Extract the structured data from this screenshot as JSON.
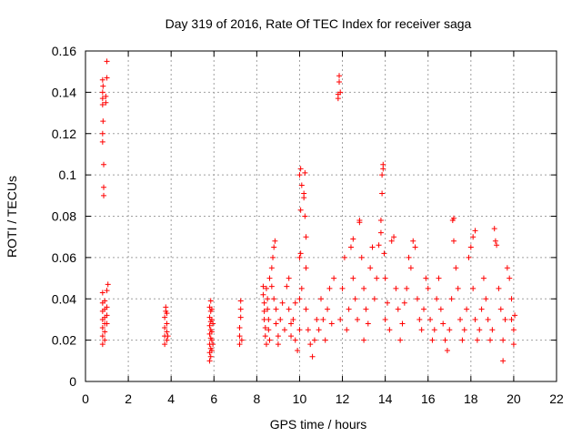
{
  "chart_data": {
    "type": "scatter",
    "title": "Day 319 of 2016, Rate Of TEC Index for receiver saga",
    "xlabel": "GPS time / hours",
    "ylabel": "ROTI / TECUs",
    "xlim": [
      0,
      22
    ],
    "ylim": [
      0,
      0.16
    ],
    "xticks": [
      0,
      2,
      4,
      6,
      8,
      10,
      12,
      14,
      16,
      18,
      20,
      22
    ],
    "yticks": [
      0,
      0.02,
      0.04,
      0.06,
      0.08,
      0.1,
      0.12,
      0.14,
      0.16
    ],
    "xtick_labels": [
      "0",
      "2",
      "4",
      "6",
      "8",
      "10",
      "12",
      "14",
      "16",
      "18",
      "20",
      "22"
    ],
    "ytick_labels": [
      "0",
      "0.02",
      "0.04",
      "0.06",
      "0.08",
      "0.1",
      "0.12",
      "0.14",
      "0.16"
    ],
    "grid": true,
    "marker": "plus",
    "color": "#ff0000",
    "series": [
      {
        "name": "ROTI",
        "points": [
          [
            0.8,
            0.018
          ],
          [
            0.8,
            0.022
          ],
          [
            0.8,
            0.026
          ],
          [
            0.8,
            0.03
          ],
          [
            0.8,
            0.034
          ],
          [
            0.8,
            0.038
          ],
          [
            0.8,
            0.043
          ],
          [
            0.85,
            0.09
          ],
          [
            0.85,
            0.094
          ],
          [
            0.85,
            0.105
          ],
          [
            0.8,
            0.116
          ],
          [
            0.8,
            0.12
          ],
          [
            0.82,
            0.126
          ],
          [
            0.8,
            0.134
          ],
          [
            0.8,
            0.137
          ],
          [
            0.8,
            0.14
          ],
          [
            0.82,
            0.143
          ],
          [
            0.8,
            0.146
          ],
          [
            0.9,
            0.02
          ],
          [
            0.9,
            0.024
          ],
          [
            0.9,
            0.028
          ],
          [
            0.9,
            0.031
          ],
          [
            0.9,
            0.035
          ],
          [
            0.9,
            0.039
          ],
          [
            0.95,
            0.135
          ],
          [
            0.95,
            0.138
          ],
          [
            1.0,
            0.147
          ],
          [
            1.0,
            0.155
          ],
          [
            1.0,
            0.044
          ],
          [
            1.05,
            0.047
          ],
          [
            1.0,
            0.028
          ],
          [
            1.0,
            0.032
          ],
          [
            1.0,
            0.036
          ],
          [
            3.7,
            0.018
          ],
          [
            3.7,
            0.022
          ],
          [
            3.7,
            0.026
          ],
          [
            3.7,
            0.031
          ],
          [
            3.75,
            0.034
          ],
          [
            3.75,
            0.036
          ],
          [
            3.8,
            0.02
          ],
          [
            3.8,
            0.024
          ],
          [
            3.8,
            0.028
          ],
          [
            3.8,
            0.033
          ],
          [
            3.85,
            0.022
          ],
          [
            5.8,
            0.01
          ],
          [
            5.8,
            0.014
          ],
          [
            5.8,
            0.018
          ],
          [
            5.8,
            0.023
          ],
          [
            5.8,
            0.027
          ],
          [
            5.8,
            0.031
          ],
          [
            5.8,
            0.036
          ],
          [
            5.85,
            0.012
          ],
          [
            5.85,
            0.016
          ],
          [
            5.85,
            0.021
          ],
          [
            5.85,
            0.025
          ],
          [
            5.85,
            0.029
          ],
          [
            5.85,
            0.034
          ],
          [
            5.85,
            0.039
          ],
          [
            5.9,
            0.015
          ],
          [
            5.9,
            0.02
          ],
          [
            5.9,
            0.024
          ],
          [
            5.9,
            0.03
          ],
          [
            5.9,
            0.035
          ],
          [
            5.95,
            0.018
          ],
          [
            5.95,
            0.028
          ],
          [
            7.2,
            0.018
          ],
          [
            7.2,
            0.022
          ],
          [
            7.2,
            0.026
          ],
          [
            7.25,
            0.031
          ],
          [
            7.25,
            0.035
          ],
          [
            7.25,
            0.039
          ],
          [
            7.3,
            0.02
          ],
          [
            8.3,
            0.046
          ],
          [
            8.3,
            0.042
          ],
          [
            8.35,
            0.038
          ],
          [
            8.35,
            0.034
          ],
          [
            8.35,
            0.03
          ],
          [
            8.4,
            0.026
          ],
          [
            8.4,
            0.022
          ],
          [
            8.45,
            0.018
          ],
          [
            8.45,
            0.045
          ],
          [
            8.5,
            0.04
          ],
          [
            8.5,
            0.035
          ],
          [
            8.55,
            0.03
          ],
          [
            8.55,
            0.025
          ],
          [
            8.6,
            0.02
          ],
          [
            8.6,
            0.05
          ],
          [
            8.7,
            0.055
          ],
          [
            8.75,
            0.06
          ],
          [
            8.8,
            0.065
          ],
          [
            8.85,
            0.068
          ],
          [
            8.7,
            0.046
          ],
          [
            8.8,
            0.04
          ],
          [
            8.9,
            0.035
          ],
          [
            8.9,
            0.028
          ],
          [
            9.0,
            0.022
          ],
          [
            9.0,
            0.018
          ],
          [
            9.1,
            0.03
          ],
          [
            9.2,
            0.038
          ],
          [
            9.3,
            0.025
          ],
          [
            9.4,
            0.046
          ],
          [
            9.5,
            0.05
          ],
          [
            9.5,
            0.035
          ],
          [
            9.6,
            0.028
          ],
          [
            9.6,
            0.022
          ],
          [
            9.7,
            0.03
          ],
          [
            9.8,
            0.038
          ],
          [
            9.8,
            0.02
          ],
          [
            9.9,
            0.015
          ],
          [
            10.0,
            0.025
          ],
          [
            10.0,
            0.04
          ],
          [
            10.0,
            0.06
          ],
          [
            10.05,
            0.062
          ],
          [
            10.1,
            0.045
          ],
          [
            10.05,
            0.083
          ],
          [
            10.1,
            0.095
          ],
          [
            10.0,
            0.1
          ],
          [
            10.05,
            0.103
          ],
          [
            10.25,
            0.101
          ],
          [
            10.2,
            0.091
          ],
          [
            10.2,
            0.089
          ],
          [
            10.25,
            0.08
          ],
          [
            10.3,
            0.07
          ],
          [
            10.3,
            0.055
          ],
          [
            10.3,
            0.035
          ],
          [
            10.4,
            0.025
          ],
          [
            10.5,
            0.018
          ],
          [
            10.6,
            0.012
          ],
          [
            10.7,
            0.02
          ],
          [
            10.8,
            0.03
          ],
          [
            10.9,
            0.025
          ],
          [
            11.0,
            0.04
          ],
          [
            11.1,
            0.03
          ],
          [
            11.2,
            0.02
          ],
          [
            11.3,
            0.035
          ],
          [
            11.4,
            0.045
          ],
          [
            11.5,
            0.028
          ],
          [
            11.6,
            0.05
          ],
          [
            11.8,
            0.137
          ],
          [
            11.8,
            0.139
          ],
          [
            11.85,
            0.145
          ],
          [
            11.85,
            0.148
          ],
          [
            11.9,
            0.14
          ],
          [
            11.9,
            0.03
          ],
          [
            12.0,
            0.045
          ],
          [
            12.1,
            0.06
          ],
          [
            12.2,
            0.025
          ],
          [
            12.3,
            0.035
          ],
          [
            12.4,
            0.065
          ],
          [
            12.5,
            0.069
          ],
          [
            12.5,
            0.05
          ],
          [
            12.6,
            0.04
          ],
          [
            12.7,
            0.03
          ],
          [
            12.8,
            0.078
          ],
          [
            12.8,
            0.077
          ],
          [
            12.9,
            0.06
          ],
          [
            13.0,
            0.045
          ],
          [
            13.0,
            0.02
          ],
          [
            13.1,
            0.035
          ],
          [
            13.2,
            0.028
          ],
          [
            13.3,
            0.055
          ],
          [
            13.4,
            0.065
          ],
          [
            13.5,
            0.04
          ],
          [
            13.6,
            0.05
          ],
          [
            13.7,
            0.066
          ],
          [
            13.8,
            0.072
          ],
          [
            13.8,
            0.078
          ],
          [
            13.85,
            0.091
          ],
          [
            13.85,
            0.1
          ],
          [
            13.9,
            0.103
          ],
          [
            13.9,
            0.105
          ],
          [
            13.95,
            0.062
          ],
          [
            14.0,
            0.05
          ],
          [
            14.0,
            0.03
          ],
          [
            14.1,
            0.038
          ],
          [
            14.2,
            0.025
          ],
          [
            14.3,
            0.068
          ],
          [
            14.4,
            0.07
          ],
          [
            14.5,
            0.045
          ],
          [
            14.6,
            0.035
          ],
          [
            14.7,
            0.02
          ],
          [
            14.8,
            0.028
          ],
          [
            14.9,
            0.038
          ],
          [
            15.0,
            0.045
          ],
          [
            15.1,
            0.06
          ],
          [
            15.2,
            0.055
          ],
          [
            15.3,
            0.068
          ],
          [
            15.4,
            0.065
          ],
          [
            15.5,
            0.04
          ],
          [
            15.6,
            0.03
          ],
          [
            15.7,
            0.025
          ],
          [
            15.8,
            0.035
          ],
          [
            15.9,
            0.05
          ],
          [
            16.0,
            0.045
          ],
          [
            16.1,
            0.03
          ],
          [
            16.2,
            0.02
          ],
          [
            16.3,
            0.025
          ],
          [
            16.4,
            0.04
          ],
          [
            16.5,
            0.05
          ],
          [
            16.6,
            0.035
          ],
          [
            16.7,
            0.028
          ],
          [
            16.8,
            0.02
          ],
          [
            16.9,
            0.015
          ],
          [
            17.0,
            0.025
          ],
          [
            17.1,
            0.04
          ],
          [
            17.2,
            0.079
          ],
          [
            17.15,
            0.078
          ],
          [
            17.2,
            0.068
          ],
          [
            17.3,
            0.055
          ],
          [
            17.4,
            0.045
          ],
          [
            17.5,
            0.03
          ],
          [
            17.6,
            0.02
          ],
          [
            17.7,
            0.025
          ],
          [
            17.8,
            0.035
          ],
          [
            17.9,
            0.06
          ],
          [
            18.0,
            0.065
          ],
          [
            18.1,
            0.07
          ],
          [
            18.2,
            0.073
          ],
          [
            18.1,
            0.045
          ],
          [
            18.2,
            0.03
          ],
          [
            18.3,
            0.02
          ],
          [
            18.4,
            0.025
          ],
          [
            18.5,
            0.035
          ],
          [
            18.6,
            0.05
          ],
          [
            18.7,
            0.04
          ],
          [
            18.8,
            0.03
          ],
          [
            18.9,
            0.02
          ],
          [
            19.0,
            0.025
          ],
          [
            19.1,
            0.074
          ],
          [
            19.15,
            0.068
          ],
          [
            19.2,
            0.066
          ],
          [
            19.3,
            0.045
          ],
          [
            19.4,
            0.035
          ],
          [
            19.5,
            0.01
          ],
          [
            19.5,
            0.02
          ],
          [
            19.6,
            0.03
          ],
          [
            19.7,
            0.055
          ],
          [
            19.8,
            0.05
          ],
          [
            19.9,
            0.04
          ],
          [
            19.9,
            0.03
          ],
          [
            20.0,
            0.025
          ],
          [
            20.0,
            0.018
          ],
          [
            20.05,
            0.032
          ]
        ]
      }
    ]
  }
}
